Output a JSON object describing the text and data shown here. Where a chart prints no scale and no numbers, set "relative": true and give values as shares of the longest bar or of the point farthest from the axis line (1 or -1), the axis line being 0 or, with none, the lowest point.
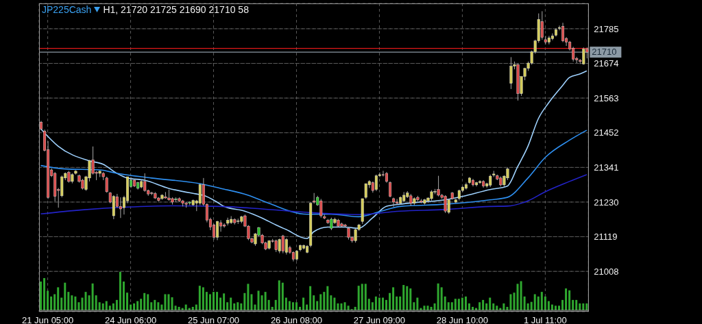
{
  "chart_data": [
    {
      "type": "candlestick",
      "title": "JP225Cash",
      "subtitle": "H1, 21720 21725 21690 21710 58",
      "categories": [
        null,
        null,
        "21 Jun 05:00",
        null,
        null,
        null,
        null,
        null,
        null,
        null,
        null,
        null,
        null,
        null,
        null,
        null,
        null,
        null,
        null,
        null,
        null,
        null,
        null,
        null,
        null,
        null,
        "24 Jun 06:00",
        null,
        null,
        null,
        null,
        null,
        null,
        null,
        null,
        null,
        null,
        null,
        null,
        null,
        null,
        null,
        null,
        null,
        null,
        null,
        null,
        null,
        null,
        null,
        "25 Jun 07:00",
        null,
        null,
        null,
        null,
        null,
        null,
        null,
        null,
        null,
        null,
        null,
        null,
        null,
        null,
        null,
        null,
        null,
        null,
        null,
        null,
        null,
        null,
        null,
        "26 Jun 08:00",
        null,
        null,
        null,
        null,
        null,
        null,
        null,
        null,
        null,
        null,
        null,
        null,
        null,
        null,
        null,
        null,
        null,
        null,
        null,
        null,
        null,
        null,
        null,
        "27 Jun 09:00",
        null,
        null,
        null,
        null,
        null,
        null,
        null,
        null,
        null,
        null,
        null,
        null,
        null,
        null,
        null,
        null,
        null,
        null,
        null,
        null,
        null,
        null,
        null,
        "28 Jun 10:00",
        null,
        null,
        null,
        null,
        null,
        null,
        null,
        null,
        null,
        null,
        null,
        null,
        null,
        null,
        null,
        null,
        null,
        null,
        null,
        null,
        null,
        null,
        null,
        "1 Jul 11:00",
        null,
        null,
        null,
        null,
        null,
        null,
        null,
        null,
        null,
        null,
        null,
        null
      ],
      "ohlc": [
        [
          21486,
          21490,
          21460,
          21464
        ],
        [
          21457,
          21462,
          21392,
          21395
        ],
        [
          21398,
          21425,
          21240,
          21245
        ],
        [
          21333,
          21338,
          21310,
          21314
        ],
        [
          21322,
          21326,
          21232,
          21248
        ],
        [
          21270,
          21275,
          21212,
          21267
        ],
        [
          21250,
          21315,
          21245,
          21311
        ],
        [
          21307,
          21325,
          21300,
          21322
        ],
        [
          21325,
          21330,
          21292,
          21296
        ],
        [
          21296,
          21322,
          21290,
          21318
        ],
        [
          21322,
          21332,
          21318,
          21329
        ],
        [
          21314,
          21318,
          21292,
          21296
        ],
        [
          21300,
          21304,
          21270,
          21274
        ],
        [
          21270,
          21314,
          21266,
          21311
        ],
        [
          21307,
          21365,
          21296,
          21362
        ],
        [
          21365,
          21408,
          21318,
          21322
        ],
        [
          21325,
          21329,
          21300,
          21322
        ],
        [
          21322,
          21330,
          21310,
          21329
        ],
        [
          21322,
          21326,
          21300,
          21311
        ],
        [
          21307,
          21311,
          21260,
          21263
        ],
        [
          21259,
          21262,
          21226,
          21230
        ],
        [
          21186,
          21252,
          21175,
          21248
        ],
        [
          21247,
          21256,
          21212,
          21216
        ],
        [
          21216,
          21245,
          21179,
          21208
        ],
        [
          21212,
          21250,
          21190,
          21245
        ],
        [
          21234,
          21311,
          21226,
          21311
        ],
        [
          21280,
          21310,
          21275,
          21300
        ],
        [
          21300,
          21304,
          21278,
          21281
        ],
        [
          21274,
          21295,
          21270,
          21292
        ],
        [
          21278,
          21300,
          21274,
          21296
        ],
        [
          21296,
          21322,
          21263,
          21267
        ],
        [
          21267,
          21270,
          21250,
          21256
        ],
        [
          21259,
          21263,
          21252,
          21257
        ],
        [
          21257,
          21262,
          21240,
          21243
        ],
        [
          21243,
          21246,
          21232,
          21235
        ],
        [
          21241,
          21255,
          21237,
          21252
        ],
        [
          21247,
          21262,
          21241,
          21243
        ],
        [
          21243,
          21270,
          21234,
          21237
        ],
        [
          21241,
          21245,
          21222,
          21230
        ],
        [
          21237,
          21245,
          21230,
          21240
        ],
        [
          21241,
          21245,
          21230,
          21234
        ],
        [
          21234,
          21237,
          21216,
          21226
        ],
        [
          21226,
          21230,
          21212,
          21223
        ],
        [
          21226,
          21232,
          21220,
          21230
        ],
        [
          21221,
          21238,
          21218,
          21235
        ],
        [
          21226,
          21237,
          21201,
          21234
        ],
        [
          21226,
          21290,
          21220,
          21286
        ],
        [
          21286,
          21307,
          21218,
          21223
        ],
        [
          21223,
          21226,
          21165,
          21172
        ],
        [
          21175,
          21180,
          21140,
          21150
        ],
        [
          21157,
          21160,
          21110,
          21117
        ],
        [
          21117,
          21170,
          21108,
          21168
        ],
        [
          21164,
          21172,
          21135,
          21153
        ],
        [
          21157,
          21162,
          21148,
          21153
        ],
        [
          21162,
          21180,
          21155,
          21172
        ],
        [
          21164,
          21185,
          21160,
          21175
        ],
        [
          21174,
          21178,
          21158,
          21164
        ],
        [
          21168,
          21177,
          21160,
          21170
        ],
        [
          21168,
          21186,
          21162,
          21183
        ],
        [
          21186,
          21190,
          21150,
          21153
        ],
        [
          21153,
          21156,
          21108,
          21113
        ],
        [
          21113,
          21116,
          21098,
          21102
        ],
        [
          21096,
          21131,
          21090,
          21128
        ],
        [
          21124,
          21150,
          21120,
          21148
        ],
        [
          21124,
          21128,
          21095,
          21099
        ],
        [
          21099,
          21103,
          21076,
          21080
        ],
        [
          21082,
          21108,
          21078,
          21106
        ],
        [
          21106,
          21112,
          21100,
          21104
        ],
        [
          21106,
          21110,
          21070,
          21077
        ],
        [
          21073,
          21113,
          21066,
          21110
        ],
        [
          21121,
          21125,
          21066,
          21073
        ],
        [
          21069,
          21114,
          21062,
          21110
        ],
        [
          21084,
          21090,
          21064,
          21069
        ],
        [
          21069,
          21072,
          21040,
          21047
        ],
        [
          21047,
          21076,
          21042,
          21073
        ],
        [
          21077,
          21094,
          21072,
          21091
        ],
        [
          21082,
          21094,
          21078,
          21091
        ],
        [
          21069,
          21092,
          21066,
          21088
        ],
        [
          21091,
          21230,
          21085,
          21226
        ],
        [
          21234,
          21259,
          21225,
          21230
        ],
        [
          21221,
          21250,
          21218,
          21245
        ],
        [
          21234,
          21240,
          21180,
          21186
        ],
        [
          21183,
          21190,
          21175,
          21179
        ],
        [
          21172,
          21176,
          21160,
          21164
        ],
        [
          21146,
          21180,
          21140,
          21175
        ],
        [
          21164,
          21180,
          21160,
          21175
        ],
        [
          21172,
          21176,
          21150,
          21153
        ],
        [
          21160,
          21164,
          21150,
          21153
        ],
        [
          21157,
          21160,
          21150,
          21153
        ],
        [
          21146,
          21150,
          21110,
          21117
        ],
        [
          21117,
          21120,
          21100,
          21106
        ],
        [
          21106,
          21145,
          21100,
          21142
        ],
        [
          21142,
          21160,
          21138,
          21157
        ],
        [
          21168,
          21241,
          21160,
          21241
        ],
        [
          21245,
          21289,
          21240,
          21289
        ],
        [
          21285,
          21300,
          21275,
          21296
        ],
        [
          21292,
          21296,
          21260,
          21267
        ],
        [
          21270,
          21318,
          21265,
          21314
        ],
        [
          21314,
          21325,
          21310,
          21318
        ],
        [
          21318,
          21330,
          21312,
          21316
        ],
        [
          21322,
          21326,
          21292,
          21296
        ],
        [
          21292,
          21296,
          21245,
          21248
        ],
        [
          21241,
          21244,
          21215,
          21230
        ],
        [
          21230,
          21240,
          21222,
          21226
        ],
        [
          21226,
          21248,
          21222,
          21245
        ],
        [
          21234,
          21262,
          21230,
          21252
        ],
        [
          21247,
          21265,
          21243,
          21259
        ],
        [
          21250,
          21256,
          21218,
          21226
        ],
        [
          21226,
          21245,
          21220,
          21241
        ],
        [
          21245,
          21250,
          21232,
          21237
        ],
        [
          21234,
          21240,
          21226,
          21230
        ],
        [
          21226,
          21240,
          21222,
          21237
        ],
        [
          21234,
          21245,
          21228,
          21243
        ],
        [
          21241,
          21268,
          21235,
          21263
        ],
        [
          21263,
          21272,
          21255,
          21264
        ],
        [
          21270,
          21314,
          21248,
          21252
        ],
        [
          21252,
          21256,
          21240,
          21245
        ],
        [
          21248,
          21252,
          21195,
          21201
        ],
        [
          21197,
          21240,
          21192,
          21237
        ],
        [
          21259,
          21262,
          21238,
          21241
        ],
        [
          21230,
          21240,
          21226,
          21237
        ],
        [
          21241,
          21270,
          21235,
          21267
        ],
        [
          21267,
          21280,
          21262,
          21278
        ],
        [
          21274,
          21292,
          21270,
          21286
        ],
        [
          21292,
          21310,
          21288,
          21307
        ],
        [
          21300,
          21304,
          21280,
          21285
        ],
        [
          21285,
          21295,
          21280,
          21292
        ],
        [
          21292,
          21300,
          21288,
          21296
        ],
        [
          21296,
          21300,
          21276,
          21281
        ],
        [
          21281,
          21292,
          21276,
          21289
        ],
        [
          21284,
          21318,
          21278,
          21313
        ],
        [
          21316,
          21330,
          21310,
          21320
        ],
        [
          21314,
          21318,
          21300,
          21304
        ],
        [
          21307,
          21312,
          21280,
          21285
        ],
        [
          21285,
          21316,
          21280,
          21313
        ],
        [
          21307,
          21340,
          21300,
          21336
        ],
        [
          21610,
          21694,
          21592,
          21665
        ],
        [
          21665,
          21680,
          21655,
          21670
        ],
        [
          21670,
          21674,
          21555,
          21577
        ],
        [
          21577,
          21632,
          21570,
          21632
        ],
        [
          21632,
          21660,
          21620,
          21658
        ],
        [
          21658,
          21680,
          21650,
          21675
        ],
        [
          21675,
          21715,
          21670,
          21711
        ],
        [
          21711,
          21750,
          21705,
          21746
        ],
        [
          21746,
          21834,
          21740,
          21815
        ],
        [
          21808,
          21841,
          21750,
          21757
        ],
        [
          21750,
          21762,
          21735,
          21742
        ],
        [
          21742,
          21762,
          21735,
          21756
        ],
        [
          21753,
          21770,
          21748,
          21762
        ],
        [
          21764,
          21787,
          21760,
          21782
        ],
        [
          21786,
          21795,
          21780,
          21789
        ],
        [
          21793,
          21804,
          21742,
          21746
        ],
        [
          21754,
          21758,
          21730,
          21742
        ],
        [
          21742,
          21746,
          21715,
          21720
        ],
        [
          21723,
          21727,
          21680,
          21687
        ],
        [
          21690,
          21695,
          21675,
          21685
        ],
        [
          21684,
          21688,
          21672,
          21680
        ],
        [
          21672,
          21725,
          21670,
          21720
        ],
        [
          21720,
          21725,
          21690,
          21710
        ]
      ],
      "colors": [
        "#d94a4a",
        "#d94a4a",
        "#d94a4a",
        "#d94a4a",
        "#d94a4a",
        "#d94a4a",
        "#d4cc5a",
        "#d4cc5a",
        "#d94a4a",
        "#d4cc5a",
        "#d4cc5a",
        "#d94a4a",
        "#d94a4a",
        "#d4cc5a",
        "#d4cc5a",
        "#d94a4a",
        "#d94a4a",
        "#d4cc5a",
        "#d94a4a",
        "#d94a4a",
        "#d94a4a",
        "#d4cc5a",
        "#d94a4a",
        "#d94a4a",
        "#d4cc5a",
        "#d4cc5a",
        "#2fbf2f",
        "#d94a4a",
        "#2fbf2f",
        "#d4cc5a",
        "#d94a4a",
        "#d94a4a",
        "#d94a4a",
        "#d94a4a",
        "#d94a4a",
        "#d4cc5a",
        "#d94a4a",
        "#d94a4a",
        "#d94a4a",
        "#2fbf2f",
        "#d94a4a",
        "#d94a4a",
        "#d94a4a",
        "#2fbf2f",
        "#d4cc5a",
        "#d4cc5a",
        "#d4cc5a",
        "#d94a4a",
        "#d94a4a",
        "#d94a4a",
        "#d94a4a",
        "#d4cc5a",
        "#d94a4a",
        "#d94a4a",
        "#d4cc5a",
        "#d4cc5a",
        "#d94a4a",
        "#d4cc5a",
        "#d4cc5a",
        "#d94a4a",
        "#d94a4a",
        "#d94a4a",
        "#d4cc5a",
        "#2fbf2f",
        "#d94a4a",
        "#d94a4a",
        "#d4cc5a",
        "#d94a4a",
        "#d94a4a",
        "#d4cc5a",
        "#d94a4a",
        "#d4cc5a",
        "#d94a4a",
        "#d94a4a",
        "#d4cc5a",
        "#d4cc5a",
        "#d4cc5a",
        "#d4cc5a",
        "#d4cc5a",
        "#d94a4a",
        "#2fbf2f",
        "#d94a4a",
        "#d94a4a",
        "#d94a4a",
        "#2fbf2f",
        "#d4cc5a",
        "#d94a4a",
        "#d94a4a",
        "#d94a4a",
        "#d94a4a",
        "#d94a4a",
        "#d4cc5a",
        "#d4cc5a",
        "#d4cc5a",
        "#d4cc5a",
        "#d4cc5a",
        "#d94a4a",
        "#d4cc5a",
        "#d4cc5a",
        "#d94a4a",
        "#d94a4a",
        "#d94a4a",
        "#d94a4a",
        "#d94a4a",
        "#d4cc5a",
        "#d4cc5a",
        "#d4cc5a",
        "#d94a4a",
        "#d4cc5a",
        "#d94a4a",
        "#d94a4a",
        "#d4cc5a",
        "#d4cc5a",
        "#d4cc5a",
        "#d4cc5a",
        "#d94a4a",
        "#d94a4a",
        "#d94a4a",
        "#d4cc5a",
        "#d94a4a",
        "#d4cc5a",
        "#d4cc5a",
        "#d4cc5a",
        "#d4cc5a",
        "#d4cc5a",
        "#d94a4a",
        "#d4cc5a",
        "#d4cc5a",
        "#d94a4a",
        "#d4cc5a",
        "#d4cc5a",
        "#d4cc5a",
        "#d94a4a",
        "#d94a4a",
        "#d4cc5a",
        "#d4cc5a",
        "#d4cc5a",
        "#d4cc5a",
        "#d94a4a",
        "#d4cc5a",
        "#d4cc5a",
        "#d4cc5a",
        "#d4cc5a",
        "#d4cc5a",
        "#d4cc5a",
        "#d94a4a",
        "#d94a4a",
        "#d4cc5a",
        "#d4cc5a",
        "#d4cc5a",
        "#d4cc5a",
        "#d94a4a",
        "#d94a4a",
        "#d94a4a",
        "#d94a4a",
        "#d94a4a",
        "#d94a4a",
        "#d4cc5a",
        "#d94a4a"
      ],
      "series": [
        {
          "type": "line",
          "color": "#9fd2ff",
          "values": [
            21464,
            null,
            null,
            null,
            null,
            21409,
            null,
            null,
            null,
            null,
            null,
            null,
            null,
            null,
            21362,
            null,
            null,
            null,
            21351,
            null,
            null,
            null,
            21322,
            null,
            null,
            21307,
            null,
            null,
            null,
            null,
            21300,
            null,
            null,
            null,
            null,
            null,
            null,
            21274,
            null,
            null,
            null,
            null,
            null,
            null,
            null,
            21256,
            null,
            21252,
            null,
            null,
            null,
            21230,
            null,
            21216,
            null,
            null,
            null,
            null,
            null,
            21201,
            null,
            null,
            null,
            null,
            21179,
            null,
            null,
            null,
            21157,
            null,
            null,
            21142,
            null,
            null,
            null,
            null,
            null,
            21113,
            null,
            21135,
            null,
            null,
            null,
            21150,
            null,
            null,
            null,
            null,
            21150,
            null,
            null,
            null,
            21146,
            null,
            null,
            null,
            21179,
            null,
            null,
            null,
            21216,
            null,
            null,
            null,
            21223,
            null,
            null,
            null,
            null,
            null,
            21230,
            null,
            null,
            null,
            null,
            null,
            null,
            21237,
            null,
            null,
            null,
            null,
            21248,
            null,
            null,
            null,
            null,
            null,
            null,
            null,
            21270,
            null,
            null,
            null,
            null,
            21281,
            null,
            null,
            21343,
            null,
            null,
            21409,
            null,
            null,
            21497,
            null,
            null,
            21548,
            null,
            null,
            null,
            21603,
            null,
            21629,
            null,
            null,
            21640,
            null,
            21650
          ]
        },
        {
          "type": "line",
          "color": "#2e8ff0",
          "values": [
            21347,
            null,
            null,
            null,
            null,
            null,
            null,
            21336,
            null,
            null,
            null,
            null,
            null,
            null,
            null,
            null,
            null,
            21333,
            null,
            null,
            null,
            null,
            21322,
            null,
            null,
            null,
            null,
            null,
            null,
            null,
            null,
            null,
            21307,
            null,
            null,
            null,
            null,
            null,
            null,
            null,
            null,
            null,
            null,
            null,
            null,
            null,
            21289,
            null,
            null,
            null,
            null,
            null,
            21274,
            null,
            null,
            null,
            null,
            null,
            null,
            null,
            21252,
            null,
            null,
            null,
            null,
            null,
            21226,
            null,
            null,
            null,
            null,
            null,
            null,
            null,
            null,
            null,
            null,
            21191,
            null,
            null,
            null,
            null,
            null,
            null,
            21191,
            null,
            null,
            null,
            null,
            null,
            null,
            null,
            21183,
            null,
            null,
            null,
            null,
            null,
            21199,
            null,
            null,
            null,
            null,
            null,
            21216,
            null,
            null,
            null,
            null,
            null,
            null,
            null,
            null,
            null,
            null,
            null,
            null,
            21223,
            null,
            null,
            null,
            null,
            null,
            null,
            null,
            null,
            null,
            null,
            null,
            null,
            21237,
            null,
            null,
            null,
            null,
            21245,
            null,
            null,
            null,
            null,
            null,
            21307,
            null,
            null,
            null,
            null,
            21373,
            null,
            null,
            null,
            null,
            null,
            null,
            21428,
            null,
            null,
            null,
            null,
            21460
          ]
        },
        {
          "type": "line",
          "color": "#2323c8",
          "values": [
            21192,
            null,
            null,
            null,
            null,
            null,
            null,
            null,
            null,
            null,
            null,
            null,
            21205,
            null,
            null,
            null,
            null,
            null,
            null,
            null,
            null,
            null,
            null,
            null,
            null,
            21214,
            null,
            null,
            null,
            null,
            null,
            null,
            null,
            null,
            null,
            null,
            null,
            null,
            21218,
            null,
            null,
            null,
            null,
            null,
            null,
            null,
            null,
            null,
            null,
            null,
            null,
            null,
            21216,
            null,
            null,
            null,
            null,
            null,
            null,
            null,
            null,
            null,
            null,
            null,
            21208,
            null,
            null,
            null,
            null,
            null,
            null,
            null,
            null,
            null,
            null,
            null,
            null,
            21197,
            null,
            null,
            null,
            null,
            null,
            null,
            null,
            null,
            null,
            null,
            null,
            null,
            null,
            null,
            21190,
            null,
            null,
            null,
            null,
            null,
            null,
            null,
            null,
            null,
            null,
            null,
            21201,
            null,
            null,
            null,
            null,
            null,
            null,
            null,
            null,
            null,
            null,
            null,
            null,
            21206,
            null,
            null,
            null,
            null,
            null,
            null,
            null,
            null,
            null,
            null,
            null,
            null,
            21216,
            null,
            null,
            null,
            null,
            21217,
            null,
            null,
            null,
            null,
            null,
            21234,
            null,
            null,
            null,
            null,
            21263,
            null,
            null,
            null,
            null,
            null,
            null,
            21296,
            null,
            null,
            null,
            null,
            21318
          ]
        }
      ],
      "ref_lines": [
        {
          "axis": "y",
          "value": 21722,
          "label": null,
          "color": "#e01818"
        },
        {
          "axis": "y",
          "value": 21710,
          "label": "21710",
          "color": "#8c9aa5"
        }
      ],
      "ylim": [
        20879,
        21866
      ],
      "yticks": [
        21008,
        21119,
        21230,
        21341,
        21452,
        21563,
        21674,
        21785
      ],
      "grid": true
    },
    {
      "type": "bar",
      "relative": true,
      "tick_labels": false,
      "color": "#2fa82f",
      "categories": [
        null,
        null,
        null,
        null,
        null,
        null,
        null,
        null,
        null,
        null,
        null,
        null,
        null,
        null,
        null,
        null,
        null,
        null,
        null,
        null,
        null,
        null,
        null,
        null,
        null,
        null,
        null,
        null,
        null,
        null,
        null,
        null,
        null,
        null,
        null,
        null,
        null,
        null,
        null,
        null,
        null,
        null,
        null,
        null,
        null,
        null,
        null,
        null,
        null,
        null,
        null,
        null,
        null,
        null,
        null,
        null,
        null,
        null,
        null,
        null,
        null,
        null,
        null,
        null,
        null,
        null,
        null,
        null,
        null,
        null,
        null,
        null,
        null,
        null,
        null,
        null,
        null,
        null,
        null,
        null,
        null,
        null,
        null,
        null,
        null,
        null,
        null,
        null,
        null,
        null,
        null,
        null,
        null,
        null,
        null,
        null,
        null,
        null,
        null,
        null,
        null,
        null,
        null,
        null,
        null,
        null,
        null,
        null,
        null,
        null,
        null,
        null,
        null,
        null,
        null,
        null,
        null,
        null,
        null,
        null,
        null,
        null,
        null,
        null,
        null,
        null,
        null,
        null,
        null,
        null,
        null,
        null,
        null,
        null,
        null,
        null,
        null,
        null,
        null,
        null,
        null,
        null,
        null,
        null,
        null,
        null,
        null,
        null,
        null,
        null,
        null,
        null,
        null,
        null,
        null,
        null,
        null,
        null,
        null
      ],
      "values": [
        0.75,
        0.84,
        0.51,
        0.36,
        0.42,
        0.6,
        0.33,
        0.72,
        0.48,
        0.39,
        0.36,
        0.21,
        0.33,
        0.48,
        0.39,
        0.7,
        0.39,
        0.21,
        0.18,
        0.24,
        0.12,
        0.18,
        0.27,
        1,
        0.75,
        0.46,
        0.15,
        0.18,
        0.24,
        0.3,
        0.45,
        0.42,
        0.21,
        0.27,
        0.21,
        0.15,
        0.42,
        0.42,
        0.34,
        0.12,
        0.09,
        0.06,
        0.15,
        0.06,
        0.09,
        0.15,
        0.64,
        0.6,
        0.48,
        0.42,
        0.48,
        0.48,
        0.33,
        0.44,
        0.21,
        0.33,
        0.18,
        0.21,
        0.18,
        0.45,
        0.69,
        0.42,
        0.15,
        0.51,
        0.39,
        0.48,
        0.27,
        0.09,
        0.27,
        0.78,
        0.72,
        0.33,
        0.24,
        0.21,
        0.21,
        0.09,
        0.33,
        0.15,
        0.63,
        0.39,
        0.24,
        0.42,
        0.48,
        0.63,
        0.39,
        0.33,
        0.18,
        0.18,
        0.21,
        0.12,
        0.03,
        0.09,
        0.64,
        0.69,
        0.69,
        0.3,
        0.21,
        0.36,
        0.33,
        0.33,
        0.27,
        0.45,
        0.6,
        0.36,
        0.36,
        0.66,
        0.63,
        0.57,
        0.21,
        0.33,
        0.06,
        0.12,
        0.12,
        0.09,
        0.18,
        0.7,
        0.6,
        0.36,
        0.21,
        0.21,
        0.3,
        0.3,
        0.33,
        0.36,
        0.18,
        0.09,
        0.06,
        0.21,
        0.27,
        0.18,
        0.33,
        0.18,
        0.12,
        0.06,
        0.18,
        0.09,
        0.42,
        0.46,
        0.69,
        0.76,
        0.36,
        0.18,
        0.22,
        0.42,
        0.36,
        0.48,
        0.36,
        0.24,
        0.15,
        0.12,
        0.12,
        0.27,
        0.57,
        0.52,
        0.27,
        0.27,
        0.18,
        0.18,
        0.18
      ]
    }
  ]
}
